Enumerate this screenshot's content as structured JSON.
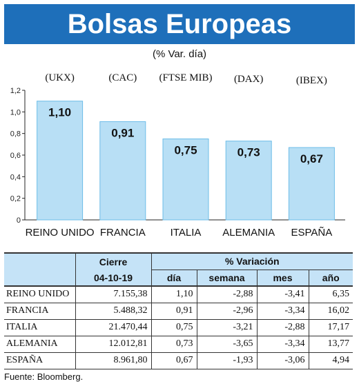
{
  "title": "Bolsas Europeas",
  "subtitle": "(% Var. día)",
  "chart_data": {
    "type": "bar",
    "categories": [
      "REINO UNIDO",
      "FRANCIA",
      "ITALIA",
      "ALEMANIA",
      "ESPAÑA"
    ],
    "indices": [
      "(UKX)",
      "(CAC)",
      "(FTSE MIB)",
      "(DAX)",
      "(IBEX)"
    ],
    "values": [
      1.1,
      0.91,
      0.75,
      0.73,
      0.67
    ],
    "value_labels": [
      "1,10",
      "0,91",
      "0,75",
      "0,73",
      "0,67"
    ],
    "ylim": [
      0,
      1.2
    ],
    "yticks": [
      0,
      0.2,
      0.4,
      0.6,
      0.8,
      1.0,
      1.2
    ],
    "ytick_labels": [
      "0",
      "0,2",
      "0,4",
      "0,6",
      "0,8",
      "1,0",
      "1,2"
    ],
    "grid": false,
    "bar_color": "#b8dff5",
    "bar_edge_color": "#6dbde8"
  },
  "table": {
    "cierre_header": "Cierre",
    "date_header": "04-10-19",
    "variacion_header": "% Variación",
    "sub_headers": [
      "día",
      "semana",
      "mes",
      "año"
    ],
    "rows": [
      {
        "country": "REINO UNIDO",
        "cierre": "7.155,38",
        "dia": "1,10",
        "semana": "-2,88",
        "mes": "-3,41",
        "ano": "6,35"
      },
      {
        "country": "FRANCIA",
        "cierre": "5.488,32",
        "dia": "0,91",
        "semana": "-2,96",
        "mes": "-3,34",
        "ano": "16,02"
      },
      {
        "country": "ITALIA",
        "cierre": "21.470,44",
        "dia": "0,75",
        "semana": "-3,21",
        "mes": "-2,88",
        "ano": "17,17"
      },
      {
        "country": "ALEMANIA",
        "cierre": "12.012,81",
        "dia": "0,73",
        "semana": "-3,65",
        "mes": "-3,34",
        "ano": "13,77"
      },
      {
        "country": "ESPAÑA",
        "cierre": "8.961,80",
        "dia": "0,67",
        "semana": "-1,93",
        "mes": "-3,06",
        "ano": "4,94"
      }
    ]
  },
  "source": "Fuente: Bloomberg."
}
